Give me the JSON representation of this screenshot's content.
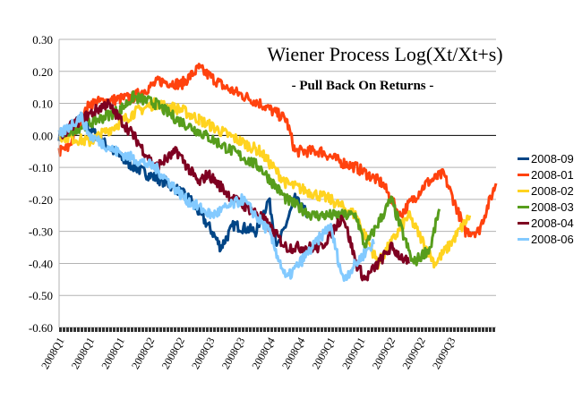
{
  "chart_data": {
    "type": "line",
    "title": "Wiener Process Log(Xt/Xt+s)",
    "subtitle": "- Pull Back On Returns -",
    "xlabel": "",
    "ylabel": "",
    "ylim": [
      -0.6,
      0.3
    ],
    "yticks": [
      "0.30",
      "0.20",
      "0.10",
      "0.00",
      "-0.10",
      "-0.20",
      "-0.30",
      "-0.40",
      "-0.50",
      "-0.60"
    ],
    "ytick_values": [
      0.3,
      0.2,
      0.1,
      0,
      -0.1,
      -0.2,
      -0.3,
      -0.4,
      -0.5,
      -0.6
    ],
    "xlim": [
      0,
      100
    ],
    "xticks": [
      "2008Q1",
      "2008Q1",
      "2008Q1",
      "2008Q2",
      "2008Q2",
      "2008Q3",
      "2008Q3",
      "2008Q4",
      "2008Q4",
      "2009Q1",
      "2009Q1",
      "2009Q2",
      "2009Q2",
      "2009Q3"
    ],
    "grid": "horizontal",
    "legend_position": "right",
    "series": [
      {
        "name": "2008-09",
        "color": "#004586",
        "x": [
          0,
          5,
          10,
          15,
          20,
          25,
          30,
          35,
          37,
          40,
          45,
          48,
          50,
          54,
          57
        ],
        "y": [
          0,
          0.05,
          -0.02,
          -0.08,
          -0.12,
          -0.15,
          -0.2,
          -0.3,
          -0.35,
          -0.28,
          -0.3,
          -0.2,
          -0.35,
          -0.2,
          -0.25
        ]
      },
      {
        "name": "2008-01",
        "color": "#ff420e",
        "x": [
          0,
          2,
          7,
          17,
          23,
          28,
          32,
          38,
          46,
          52,
          54,
          60,
          64,
          68,
          74,
          78,
          84,
          88,
          93,
          96,
          100
        ],
        "y": [
          -0.05,
          -0.04,
          0.1,
          0.12,
          0.17,
          0.16,
          0.21,
          0.15,
          0.1,
          0.05,
          -0.05,
          -0.05,
          -0.08,
          -0.1,
          -0.15,
          -0.25,
          -0.15,
          -0.12,
          -0.3,
          -0.3,
          -0.15
        ]
      },
      {
        "name": "2008-02",
        "color": "#ffd320",
        "x": [
          0,
          7,
          14,
          17,
          22,
          28,
          32,
          36,
          46,
          52,
          62,
          68,
          73,
          80,
          86,
          89,
          94
        ],
        "y": [
          0,
          -0.02,
          0.04,
          0.07,
          0.1,
          0.08,
          0.05,
          0.02,
          -0.05,
          -0.15,
          -0.2,
          -0.25,
          -0.4,
          -0.25,
          -0.4,
          -0.35,
          -0.25
        ]
      },
      {
        "name": "2008-03",
        "color": "#579d1c",
        "x": [
          0,
          9,
          14,
          17,
          22,
          27,
          31,
          36,
          46,
          52,
          58,
          64,
          68,
          70,
          76,
          81,
          85,
          87
        ],
        "y": [
          0,
          0.05,
          0.08,
          0.12,
          0.1,
          0.05,
          0.02,
          -0.02,
          -0.1,
          -0.2,
          -0.25,
          -0.25,
          -0.25,
          -0.35,
          -0.2,
          -0.4,
          -0.35,
          -0.23
        ]
      },
      {
        "name": "2008-04",
        "color": "#7e0021",
        "x": [
          0,
          5,
          11,
          17,
          22,
          27,
          32,
          34,
          40,
          46,
          52,
          60,
          65,
          68,
          70,
          76,
          80
        ],
        "y": [
          0,
          0.05,
          0.1,
          0.0,
          -0.1,
          -0.05,
          -0.15,
          -0.12,
          -0.2,
          -0.25,
          -0.35,
          -0.35,
          -0.25,
          -0.4,
          -0.45,
          -0.35,
          -0.4
        ]
      },
      {
        "name": "2008-06",
        "color": "#83caff",
        "x": [
          0,
          5,
          7,
          13,
          22,
          29,
          35,
          42,
          48,
          52,
          58,
          62,
          65,
          68,
          71,
          72
        ],
        "y": [
          0,
          0.06,
          0.0,
          -0.05,
          -0.1,
          -0.2,
          -0.25,
          -0.2,
          -0.3,
          -0.45,
          -0.35,
          -0.28,
          -0.45,
          -0.4,
          -0.35,
          -0.34
        ]
      }
    ]
  }
}
